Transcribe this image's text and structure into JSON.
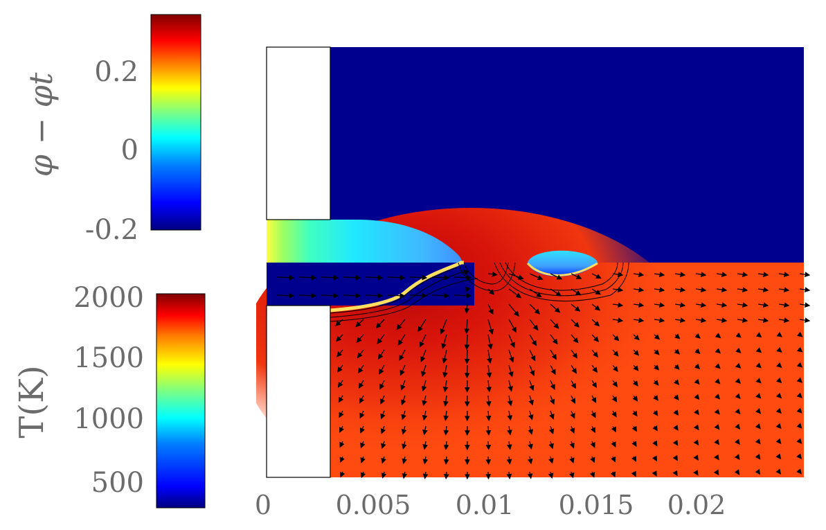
{
  "colors": {
    "jet": [
      "#00007f",
      "#0000ff",
      "#007fff",
      "#00ffff",
      "#7fff7f",
      "#ffff00",
      "#ff7f00",
      "#ff0000",
      "#7f0000"
    ],
    "phase_background": "#00008f",
    "melt_pool_background": "#ff4a10",
    "hot_core": "#cc0e08",
    "arrow": "#000000",
    "label_gray": "#6b6b6b"
  },
  "chart_data": [
    {
      "type": "heatmap",
      "title": "",
      "colorbar_label": "φ − φt",
      "colorbar_ticks": [
        "0.2",
        "0",
        "-0.2"
      ],
      "colorbar_tick_values": [
        0.2,
        0,
        -0.2
      ],
      "colorbar_range": [
        -0.2,
        0.33
      ],
      "colormap": "jet"
    },
    {
      "type": "heatmap",
      "title": "",
      "colorbar_label": "T(K)",
      "colorbar_ticks": [
        "2000",
        "1500",
        "1000",
        "500"
      ],
      "colorbar_tick_values": [
        2000,
        1500,
        1000,
        500
      ],
      "colorbar_range": [
        300,
        2050
      ],
      "colormap": "jet",
      "overlay": "velocity vector field (quiver arrows)"
    },
    {
      "type": "heatmap",
      "xlabel": "",
      "x_ticks": [
        "0",
        "0.005",
        "0.01",
        "0.015",
        "0.02"
      ],
      "x_tick_values": [
        0,
        0.005,
        0.01,
        0.015,
        0.02
      ],
      "xlim": [
        0,
        0.025
      ],
      "grid": false,
      "regions": [
        "upper half: φ − φt phase field",
        "lower half: temperature field with flow arrows"
      ]
    }
  ]
}
